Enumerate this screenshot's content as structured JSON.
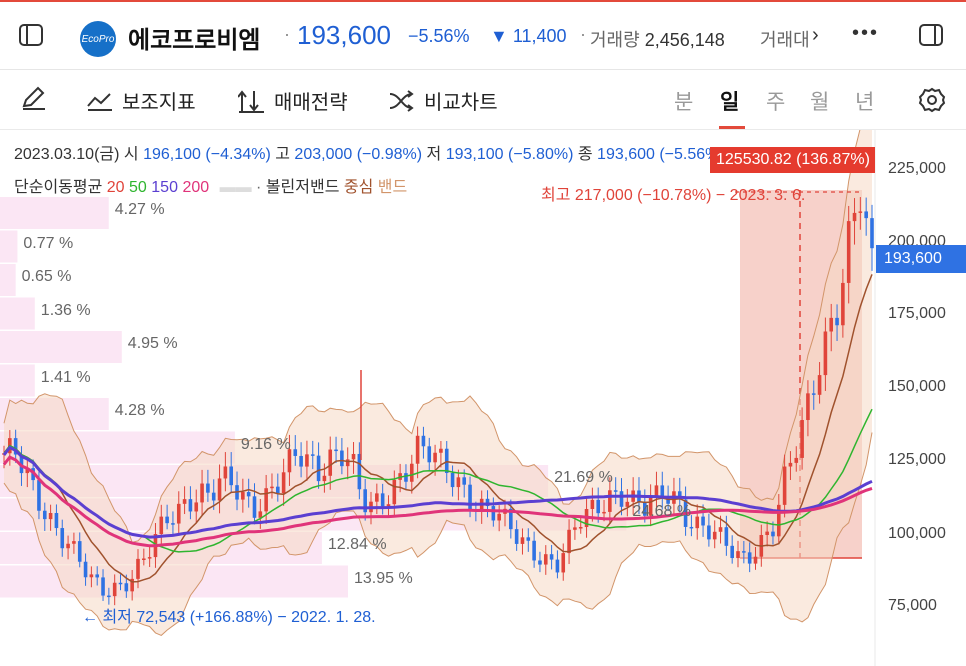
{
  "header": {
    "stock_name": "에코프로비엠",
    "logo_text": "EcoPro",
    "price": "193,600",
    "change_pct": "−5.56%",
    "change_abs": "▼ 11,400",
    "volume_label": "거래량",
    "volume_value": "2,456,148",
    "next_label": "거래대금",
    "colors": {
      "down": "#1f5fd3",
      "up": "#e0443a",
      "accent": "#e34a3b"
    }
  },
  "toolbar": {
    "indicator_label": "보조지표",
    "strategy_label": "매매전략",
    "compare_label": "비교차트",
    "periods": [
      "분",
      "일",
      "주",
      "월",
      "년"
    ],
    "active_period": "일"
  },
  "info": {
    "date": "2023.03.10(금)",
    "open_label": "시",
    "open": "196,100",
    "open_pct": "(−4.34%)",
    "high_label": "고",
    "high": "203,000",
    "high_pct": "(−0.98%)",
    "low_label": "저",
    "low": "193,100",
    "low_pct": "(−5.80%)",
    "close_label": "종",
    "close": "193,600",
    "close_pct": "(−5.56%)",
    "ma_label": "단순이동평균",
    "ma_periods": [
      "20",
      "50",
      "150",
      "200"
    ],
    "ma_colors": [
      "#e0443a",
      "#2fb52f",
      "#5b3fd1",
      "#e0347a"
    ],
    "bb_label": "볼린저밴드",
    "bb_center": "중심",
    "bb_band": "밴드"
  },
  "chart_data": {
    "type": "candlestick",
    "annotations": {
      "high": "최고 217,000 (−10.78%) − 2023. 3. 6.",
      "low": "← 최저 72,543 (+166.88%) − 2022. 1. 28.",
      "range_box": "125530.82 (136.87%)"
    },
    "volume_profile": [
      {
        "label": "4.27 %",
        "width": 0.125
      },
      {
        "label": "0.77 %",
        "width": 0.02
      },
      {
        "label": "0.65 %",
        "width": 0.018
      },
      {
        "label": "1.36 %",
        "width": 0.04
      },
      {
        "label": "4.95 %",
        "width": 0.14
      },
      {
        "label": "1.41 %",
        "width": 0.04
      },
      {
        "label": "4.28 %",
        "width": 0.125
      },
      {
        "label": "9.16 %",
        "width": 0.27
      },
      {
        "label": "21.69 %",
        "width": 0.63
      },
      {
        "label": "24.68 %",
        "width": 0.72
      },
      {
        "label": "12.84 %",
        "width": 0.37
      },
      {
        "label": "13.95 %",
        "width": 0.4
      }
    ],
    "y_axis": [
      "225,000",
      "200,000",
      "175,000",
      "150,000",
      "125,000",
      "100,000",
      "75,000"
    ],
    "ylim": [
      72000,
      230000
    ],
    "current_price": "193,600",
    "series_close": [
      128000,
      127000,
      120000,
      112000,
      108000,
      102000,
      98000,
      90000,
      84000,
      80000,
      82000,
      84000,
      88000,
      92000,
      98000,
      104000,
      108000,
      113000,
      116000,
      114000,
      118000,
      116000,
      112000,
      110000,
      114000,
      118000,
      122000,
      126000,
      124000,
      122000,
      128000,
      130000,
      126000,
      110000,
      108000,
      112000,
      118000,
      124000,
      130000,
      128000,
      124000,
      121000,
      118000,
      114000,
      110000,
      108000,
      104000,
      100000,
      97000,
      95000,
      92000,
      90000,
      96000,
      104000,
      108000,
      112000,
      115000,
      114000,
      110000,
      108000,
      112000,
      116000,
      114000,
      106000,
      102000,
      100000,
      98000,
      96000,
      93000,
      95000,
      98000,
      102000,
      118000,
      130000,
      145000,
      160000,
      170000,
      178000,
      200000,
      217000,
      193600
    ]
  }
}
